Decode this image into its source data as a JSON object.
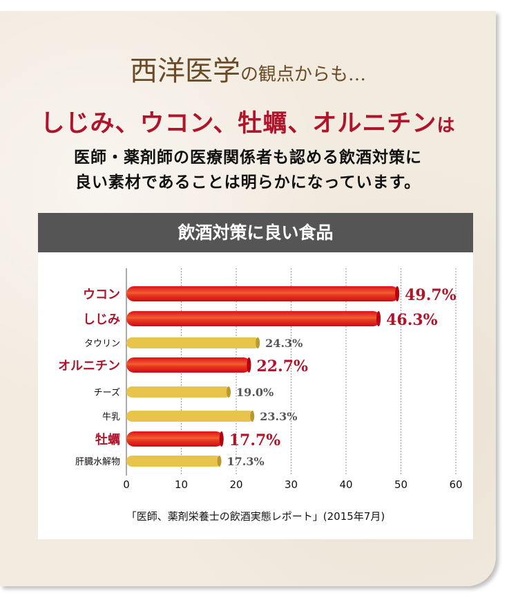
{
  "headline": {
    "main": "西洋医学",
    "suffix": "の観点からも…"
  },
  "subheadline": {
    "main": "しじみ、ウコン、牡蠣、オルニチン",
    "suffix": "は"
  },
  "body_lines": [
    "医師・薬剤師の医療関係者も認める飲酒対策に",
    "良い素材であることは明らかになっています。"
  ],
  "chart_data": {
    "type": "bar",
    "orientation": "horizontal",
    "title": "飲酒対策に良い食品",
    "categories": [
      "ウコン",
      "しじみ",
      "タウリン",
      "オルニチン",
      "チーズ",
      "牛乳",
      "牡蠣",
      "肝臓水解物"
    ],
    "values": [
      49.7,
      46.3,
      24.3,
      22.7,
      19.0,
      23.3,
      17.7,
      17.3
    ],
    "value_labels": [
      "49.7%",
      "46.3%",
      "24.3%",
      "22.7%",
      "19.0%",
      "23.3%",
      "17.7%",
      "17.3%"
    ],
    "highlighted": [
      true,
      true,
      false,
      true,
      false,
      false,
      true,
      false
    ],
    "xlim": [
      0,
      60
    ],
    "xticks": [
      "0",
      "10",
      "20",
      "30",
      "40",
      "50",
      "60"
    ],
    "grid": "vertical dotted",
    "colors": {
      "highlight": "#d81520",
      "normal": "#e8c44a",
      "highlight_text": "#b0142a",
      "normal_text": "#555555"
    },
    "source": "「医師、薬剤栄養士の飲酒実態レポート」(2015年7月)"
  }
}
